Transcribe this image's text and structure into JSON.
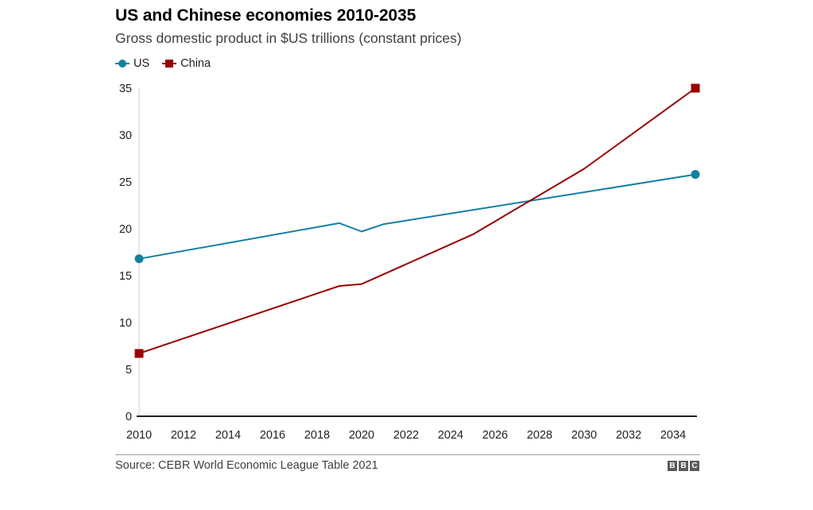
{
  "header": {
    "title": "US and Chinese economies 2010-2035",
    "subtitle": "Gross domestic product in $US trillions (constant prices)"
  },
  "footer": {
    "source": "Source: CEBR World Economic League Table 2021",
    "logo_letters": [
      "B",
      "B",
      "C"
    ]
  },
  "colors": {
    "us": "#1380a1",
    "china": "#990000",
    "axis": "#222222",
    "y_axis_line": "#cccccc"
  },
  "chart_data": {
    "type": "line",
    "title": "US and Chinese economies 2010-2035",
    "subtitle": "Gross domestic product in $US trillions (constant prices)",
    "xlabel": "",
    "ylabel": "",
    "xlim": [
      2010,
      2035
    ],
    "ylim": [
      0,
      35
    ],
    "x_ticks": [
      2010,
      2012,
      2014,
      2016,
      2018,
      2020,
      2022,
      2024,
      2026,
      2028,
      2030,
      2032,
      2034
    ],
    "y_ticks": [
      0,
      5,
      10,
      15,
      20,
      25,
      30,
      35
    ],
    "grid": false,
    "legend_position": "top-left",
    "series": [
      {
        "name": "US",
        "marker": "circle",
        "color": "#1380a1",
        "x": [
          2010,
          2019,
          2020,
          2021,
          2030,
          2035
        ],
        "values": [
          16.8,
          20.6,
          19.7,
          20.5,
          23.9,
          25.8
        ]
      },
      {
        "name": "China",
        "marker": "square",
        "color": "#990000",
        "x": [
          2010,
          2019,
          2020,
          2025,
          2030,
          2035
        ],
        "values": [
          6.7,
          13.9,
          14.1,
          19.4,
          26.4,
          35.0
        ]
      }
    ],
    "source": "Source: CEBR World Economic League Table 2021"
  }
}
